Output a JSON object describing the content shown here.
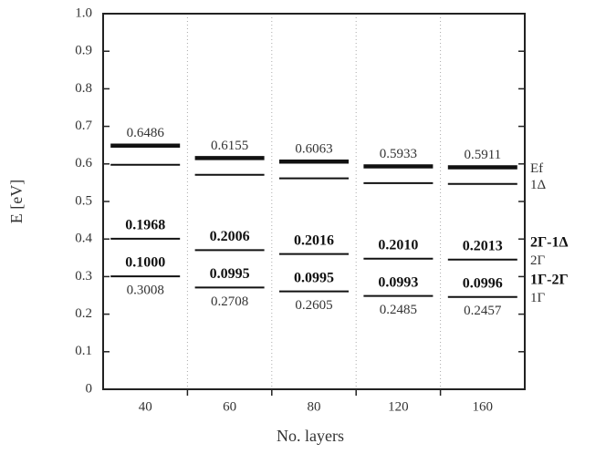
{
  "chart_data": {
    "type": "level",
    "x_label": "No. layers",
    "y_label": "E [eV]",
    "categories": [
      "40",
      "60",
      "80",
      "120",
      "160"
    ],
    "ylim": [
      0,
      1
    ],
    "yticks": [
      0,
      0.1,
      0.2,
      0.3,
      0.4,
      0.5,
      0.6,
      0.7,
      0.8,
      0.9,
      {
        "value": 1,
        "label": "1.0"
      }
    ],
    "series": [
      {
        "name": "Ef",
        "color": "#111111",
        "weight": "bold",
        "labels": "above",
        "values": [
          0.6486,
          0.6155,
          0.6063,
          0.5933,
          0.5911
        ]
      },
      {
        "name": "1Δ",
        "color": "#111111",
        "weight": "normal",
        "labels": "none",
        "values": [
          0.5976,
          0.5709,
          0.5616,
          0.5488,
          0.5466
        ]
      },
      {
        "name": "2Γ",
        "color": "#111111",
        "weight": "normal",
        "labels": "none",
        "values": [
          0.4008,
          0.3703,
          0.36,
          0.3478,
          0.3453
        ]
      },
      {
        "name": "1Γ",
        "color": "#111111",
        "weight": "normal",
        "labels": "below",
        "values": [
          0.3008,
          0.2708,
          0.2605,
          0.2485,
          0.2457
        ]
      }
    ],
    "differences": [
      {
        "name": "2Γ-1Δ",
        "values": [
          0.1968,
          0.2006,
          0.2016,
          0.201,
          0.2013
        ],
        "value_labels": [
          "0.1968",
          "0.2006",
          "0.2016",
          "0.2010",
          "0.2013"
        ]
      },
      {
        "name": "1Γ-2Γ",
        "values": [
          0.1,
          0.0995,
          0.0995,
          0.0993,
          0.0996
        ],
        "value_labels": [
          "0.1000",
          "0.0995",
          "0.0995",
          "0.0993",
          "0.0996"
        ]
      }
    ]
  }
}
